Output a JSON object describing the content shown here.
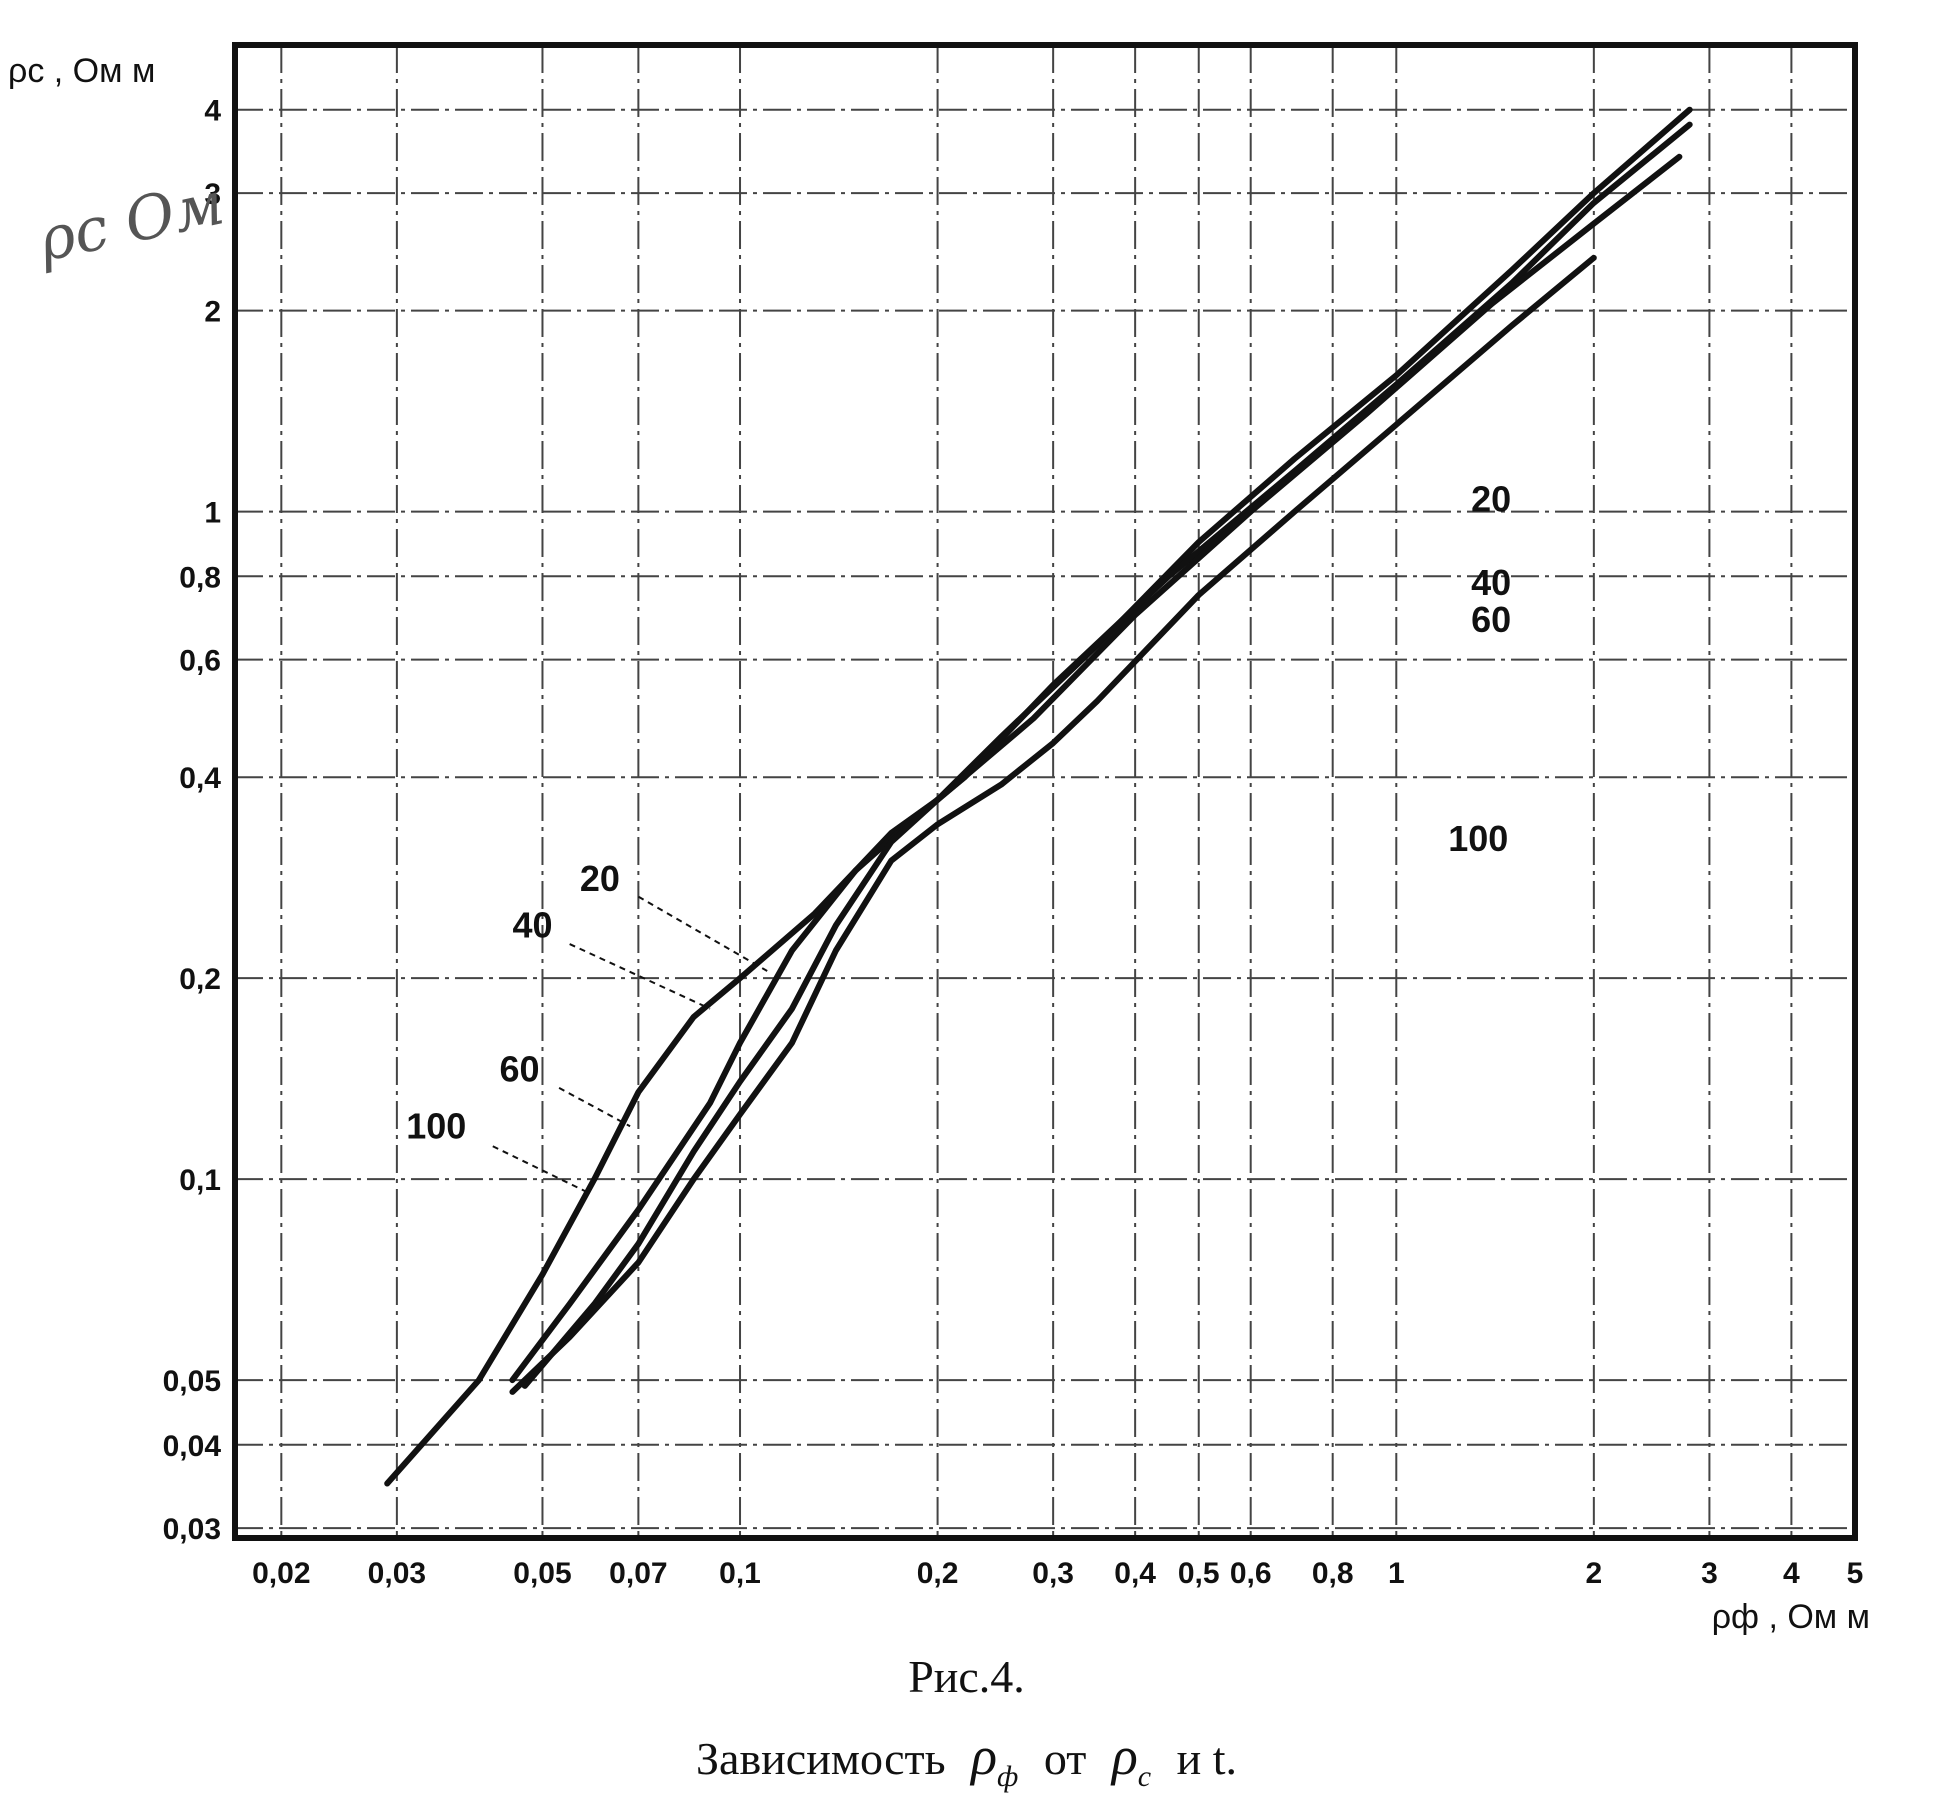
{
  "chart_data": {
    "type": "line",
    "x_scale": "log",
    "y_scale": "log",
    "xlim": [
      0.017,
      5.0
    ],
    "ylim": [
      0.029,
      5.0
    ],
    "xlabel": "ρф , Ом м",
    "ylabel": "ρс , Ом м",
    "x_ticks": [
      {
        "value": 0.02,
        "label": "0,02"
      },
      {
        "value": 0.03,
        "label": "0,03"
      },
      {
        "value": 0.05,
        "label": "0,05"
      },
      {
        "value": 0.07,
        "label": "0,07"
      },
      {
        "value": 0.1,
        "label": "0,1"
      },
      {
        "value": 0.2,
        "label": "0,2"
      },
      {
        "value": 0.3,
        "label": "0,3"
      },
      {
        "value": 0.4,
        "label": "0,4"
      },
      {
        "value": 0.5,
        "label": "0,5"
      },
      {
        "value": 0.6,
        "label": "0,6"
      },
      {
        "value": 0.8,
        "label": "0,8"
      },
      {
        "value": 1,
        "label": "1"
      },
      {
        "value": 2,
        "label": "2"
      },
      {
        "value": 3,
        "label": "3"
      },
      {
        "value": 4,
        "label": "4"
      },
      {
        "value": 5,
        "label": "5"
      }
    ],
    "y_ticks": [
      {
        "value": 0.03,
        "label": "0,03"
      },
      {
        "value": 0.04,
        "label": "0,04"
      },
      {
        "value": 0.05,
        "label": "0,05"
      },
      {
        "value": 0.1,
        "label": "0,1"
      },
      {
        "value": 0.2,
        "label": "0,2"
      },
      {
        "value": 0.4,
        "label": "0,4"
      },
      {
        "value": 0.6,
        "label": "0,6"
      },
      {
        "value": 0.8,
        "label": "0,8"
      },
      {
        "value": 1,
        "label": "1"
      },
      {
        "value": 2,
        "label": "2"
      },
      {
        "value": 3,
        "label": "3"
      },
      {
        "value": 4,
        "label": "4"
      }
    ],
    "grid": true,
    "series": [
      {
        "name": "20",
        "points": [
          [
            0.029,
            0.035
          ],
          [
            0.04,
            0.05
          ],
          [
            0.05,
            0.072
          ],
          [
            0.06,
            0.1
          ],
          [
            0.07,
            0.135
          ],
          [
            0.085,
            0.175
          ],
          [
            0.1,
            0.2
          ],
          [
            0.13,
            0.25
          ],
          [
            0.17,
            0.33
          ],
          [
            0.2,
            0.37
          ],
          [
            0.25,
            0.46
          ],
          [
            0.35,
            0.63
          ],
          [
            0.5,
            0.9
          ],
          [
            0.7,
            1.2
          ],
          [
            1.0,
            1.6
          ],
          [
            1.5,
            2.3
          ],
          [
            2.0,
            3.0
          ],
          [
            2.8,
            4.0
          ]
        ]
      },
      {
        "name": "40",
        "points": [
          [
            0.045,
            0.05
          ],
          [
            0.055,
            0.065
          ],
          [
            0.07,
            0.09
          ],
          [
            0.09,
            0.13
          ],
          [
            0.1,
            0.16
          ],
          [
            0.12,
            0.22
          ],
          [
            0.15,
            0.29
          ],
          [
            0.18,
            0.34
          ],
          [
            0.22,
            0.4
          ],
          [
            0.3,
            0.55
          ],
          [
            0.45,
            0.8
          ],
          [
            0.7,
            1.15
          ],
          [
            1.0,
            1.55
          ],
          [
            1.5,
            2.2
          ],
          [
            2.0,
            2.9
          ],
          [
            2.8,
            3.8
          ]
        ]
      },
      {
        "name": "60",
        "points": [
          [
            0.047,
            0.049
          ],
          [
            0.06,
            0.065
          ],
          [
            0.07,
            0.08
          ],
          [
            0.085,
            0.11
          ],
          [
            0.1,
            0.14
          ],
          [
            0.12,
            0.18
          ],
          [
            0.14,
            0.24
          ],
          [
            0.17,
            0.32
          ],
          [
            0.2,
            0.37
          ],
          [
            0.28,
            0.49
          ],
          [
            0.4,
            0.7
          ],
          [
            0.6,
            1.0
          ],
          [
            0.9,
            1.4
          ],
          [
            1.4,
            2.05
          ],
          [
            2.0,
            2.7
          ],
          [
            2.7,
            3.4
          ]
        ]
      },
      {
        "name": "100",
        "points": [
          [
            0.045,
            0.048
          ],
          [
            0.055,
            0.058
          ],
          [
            0.07,
            0.075
          ],
          [
            0.085,
            0.1
          ],
          [
            0.1,
            0.125
          ],
          [
            0.12,
            0.16
          ],
          [
            0.14,
            0.22
          ],
          [
            0.17,
            0.3
          ],
          [
            0.2,
            0.34
          ],
          [
            0.25,
            0.39
          ],
          [
            0.3,
            0.45
          ],
          [
            0.35,
            0.52
          ],
          [
            0.5,
            0.75
          ],
          [
            0.7,
            1.0
          ],
          [
            1.0,
            1.35
          ],
          [
            1.5,
            1.9
          ],
          [
            2.0,
            2.4
          ]
        ]
      }
    ],
    "annotations": [
      {
        "text": "20",
        "x": 1.3,
        "y": 1.0
      },
      {
        "text": "40",
        "x": 1.3,
        "y": 0.75
      },
      {
        "text": "60",
        "x": 1.3,
        "y": 0.66
      },
      {
        "text": "100",
        "x": 1.2,
        "y": 0.31
      },
      {
        "text": "20",
        "x": 0.057,
        "y": 0.27
      },
      {
        "text": "40",
        "x": 0.045,
        "y": 0.23
      },
      {
        "text": "60",
        "x": 0.043,
        "y": 0.14
      },
      {
        "text": "100",
        "x": 0.031,
        "y": 0.115
      }
    ]
  },
  "captions": {
    "figure_number": "Рис.4.",
    "description_prefix": "Зависимость",
    "symbol_1": "ρ",
    "symbol_1_sub": "ф",
    "description_middle": "от",
    "symbol_2": "ρ",
    "symbol_2_sub": "с",
    "description_suffix": "и t."
  },
  "handwritten_note": "ρс Ом"
}
